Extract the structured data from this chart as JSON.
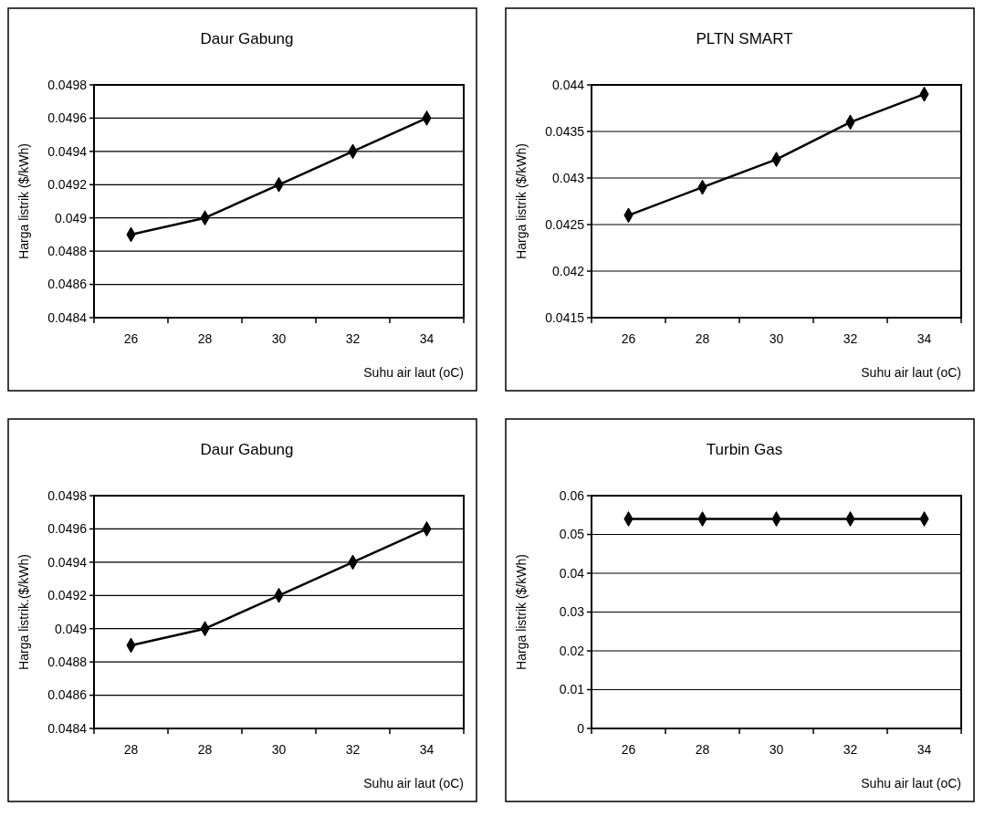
{
  "chart_data": [
    {
      "type": "line",
      "title": "Daur Gabung",
      "xlabel": "Suhu air laut (oC)",
      "ylabel": "Harga listrik ($/kWh)",
      "categories": [
        "26",
        "28",
        "30",
        "32",
        "34"
      ],
      "series": [
        {
          "color": "#000000",
          "values": [
            0.0489,
            0.049,
            0.0492,
            0.0494,
            0.0496
          ]
        }
      ],
      "ylim": [
        0.0484,
        0.0498
      ],
      "yticks": [
        0.0484,
        0.0486,
        0.0488,
        0.049,
        0.0492,
        0.0494,
        0.0496,
        0.0498
      ],
      "grid": "y",
      "marker": "diamond",
      "line_style": "solid"
    },
    {
      "type": "line",
      "title": "PLTN SMART",
      "xlabel": "Suhu air laut (oC)",
      "ylabel": "Harga listrik ($/kWh)",
      "categories": [
        "26",
        "28",
        "30",
        "32",
        "34"
      ],
      "series": [
        {
          "color": "#000000",
          "values": [
            0.0426,
            0.0429,
            0.0432,
            0.0436,
            0.0439
          ]
        }
      ],
      "ylim": [
        0.0415,
        0.044
      ],
      "yticks": [
        0.0415,
        0.042,
        0.0425,
        0.043,
        0.0435,
        0.044
      ],
      "grid": "y",
      "marker": "diamond",
      "line_style": "solid"
    },
    {
      "type": "line",
      "title": "Daur Gabung",
      "xlabel": "Suhu air laut (oC)",
      "ylabel": "Harga listrik.($/kWh)",
      "categories": [
        "28",
        "28",
        "30",
        "32",
        "34"
      ],
      "series": [
        {
          "color": "#000000",
          "values": [
            0.0489,
            0.049,
            0.0492,
            0.0494,
            0.0496
          ]
        }
      ],
      "ylim": [
        0.0484,
        0.0498
      ],
      "yticks": [
        0.0484,
        0.0486,
        0.0488,
        0.049,
        0.0492,
        0.0494,
        0.0496,
        0.0498
      ],
      "grid": "y",
      "marker": "diamond",
      "line_style": "solid"
    },
    {
      "type": "line",
      "title": "Turbin Gas",
      "xlabel": "Suhu air laut (oC)",
      "ylabel": "Harga listrik ($/kWh)",
      "categories": [
        "26",
        "28",
        "30",
        "32",
        "34"
      ],
      "series": [
        {
          "color": "#000000",
          "values": [
            0.054,
            0.054,
            0.054,
            0.054,
            0.054
          ]
        }
      ],
      "ylim": [
        0,
        0.06
      ],
      "yticks": [
        0,
        0.01,
        0.02,
        0.03,
        0.04,
        0.05,
        0.06
      ],
      "grid": "y",
      "marker": "diamond",
      "line_style": "solid"
    }
  ]
}
